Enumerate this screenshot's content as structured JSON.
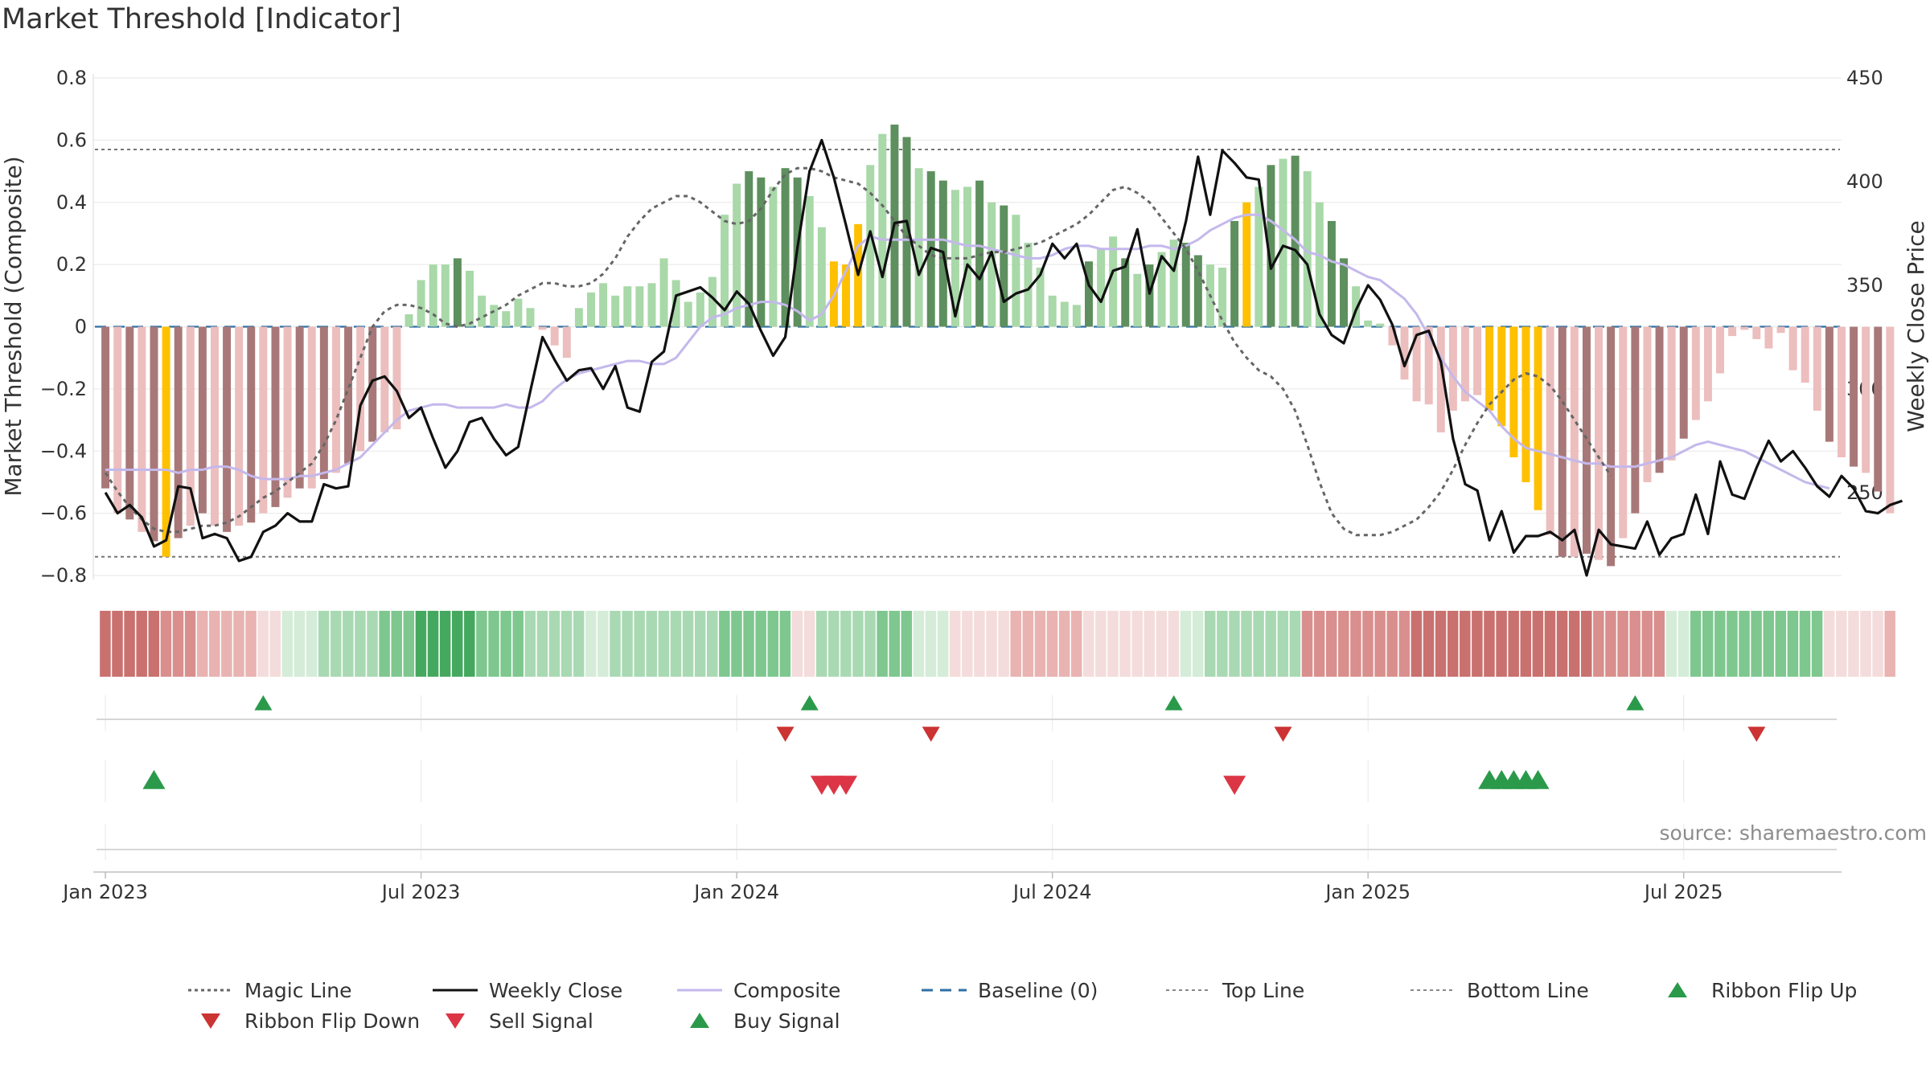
{
  "title": "Market Threshold [Indicator]",
  "source": "source: sharemaestro.com",
  "legend": [
    {
      "label": "Magic Line",
      "kind": "dotted",
      "color": "#666666"
    },
    {
      "label": "Weekly Close",
      "kind": "solid",
      "color": "#111111"
    },
    {
      "label": "Composite",
      "kind": "solid",
      "color": "#c4b8ec"
    },
    {
      "label": "Baseline (0)",
      "kind": "dashed",
      "color": "#2f6fa3"
    },
    {
      "label": "Top Line",
      "kind": "dotted",
      "color": "#888888"
    },
    {
      "label": "Bottom Line",
      "kind": "dotted",
      "color": "#888888"
    },
    {
      "label": "Ribbon Flip Up",
      "kind": "triangle-up",
      "color": "#2a9a4a"
    },
    {
      "label": "Ribbon Flip Down",
      "kind": "triangle-down",
      "color": "#cc3333"
    },
    {
      "label": "Sell Signal",
      "kind": "triangle-down",
      "color": "#dc3545"
    },
    {
      "label": "Buy Signal",
      "kind": "triangle-up",
      "color": "#2a9a4a"
    }
  ],
  "chart_data": {
    "type": "bar",
    "title": "Market Threshold [Indicator]",
    "ylabel": "Market Threshold (Composite)",
    "y2label": "Weekly Close Price",
    "ylim": [
      -0.8,
      0.8
    ],
    "yticks": [
      -0.8,
      -0.6,
      -0.4,
      -0.2,
      0,
      0.2,
      0.4,
      0.6,
      0.8
    ],
    "y2lim": [
      210,
      450
    ],
    "y2ticks": [
      250,
      300,
      350,
      400,
      450
    ],
    "xticks": [
      "Jan 2023",
      "Jul 2023",
      "Jan 2024",
      "Jul 2024",
      "Jan 2025",
      "Jul 2025"
    ],
    "xtick_weeks": [
      0,
      26,
      52,
      78,
      104,
      130
    ],
    "week_range": [
      -1,
      143
    ],
    "top_line": 0.57,
    "bottom_line": -0.74,
    "baseline": 0,
    "bar_colors": {
      "pos_strong": "#5e8f5e",
      "pos_weak": "#a9d8a9",
      "neg_strong": "#a87878",
      "neg_weak": "#ecbebe",
      "extreme": "#ffc000"
    },
    "composite_bars": [
      -0.52,
      -0.6,
      -0.62,
      -0.66,
      -0.69,
      -0.74,
      -0.68,
      -0.64,
      -0.6,
      -0.64,
      -0.66,
      -0.64,
      -0.63,
      -0.6,
      -0.58,
      -0.55,
      -0.52,
      -0.52,
      -0.49,
      -0.47,
      -0.44,
      -0.4,
      -0.37,
      -0.34,
      -0.33,
      0.04,
      0.15,
      0.2,
      0.2,
      0.22,
      0.18,
      0.1,
      0.07,
      0.05,
      0.09,
      0.06,
      -0.01,
      -0.06,
      -0.1,
      0.06,
      0.11,
      0.14,
      0.1,
      0.13,
      0.13,
      0.14,
      0.22,
      0.15,
      0.08,
      0.11,
      0.16,
      0.36,
      0.46,
      0.5,
      0.48,
      0.45,
      0.51,
      0.48,
      0.42,
      0.32,
      0.21,
      0.2,
      0.33,
      0.52,
      0.62,
      0.65,
      0.61,
      0.51,
      0.5,
      0.47,
      0.44,
      0.45,
      0.47,
      0.4,
      0.39,
      0.36,
      0.27,
      0.19,
      0.1,
      0.08,
      0.07,
      0.21,
      0.25,
      0.29,
      0.22,
      0.17,
      0.2,
      0.24,
      0.28,
      0.27,
      0.23,
      0.2,
      0.19,
      0.34,
      0.4,
      0.45,
      0.52,
      0.54,
      0.55,
      0.5,
      0.4,
      0.34,
      0.22,
      0.13,
      0.02,
      0.01,
      -0.06,
      -0.17,
      -0.24,
      -0.25,
      -0.34,
      -0.27,
      -0.24,
      -0.22,
      -0.27,
      -0.32,
      -0.42,
      -0.5,
      -0.59,
      -0.67,
      -0.74,
      -0.74,
      -0.73,
      -0.75,
      -0.77,
      -0.68,
      -0.6,
      -0.5,
      -0.47,
      -0.43,
      -0.36,
      -0.3,
      -0.24,
      -0.15,
      -0.03,
      -0.01,
      -0.04,
      -0.07,
      -0.02,
      -0.14,
      -0.18,
      -0.27,
      -0.37,
      -0.42,
      -0.45,
      -0.47,
      -0.53,
      -0.6
    ],
    "extreme_weeks": [
      5,
      60,
      61,
      62,
      94,
      114,
      115,
      116,
      117,
      118
    ],
    "weekly_close": [
      250,
      240,
      244,
      238,
      224,
      227,
      253,
      252,
      228,
      230,
      228,
      217,
      219,
      231,
      234,
      240,
      236,
      236,
      254,
      252,
      253,
      292,
      304,
      306,
      299,
      286,
      291,
      276,
      262,
      270,
      284,
      286,
      276,
      268,
      272,
      299,
      325,
      314,
      304,
      309,
      310,
      300,
      311,
      291,
      289,
      313,
      318,
      345,
      347,
      349,
      344,
      338,
      347,
      341,
      328,
      316,
      325,
      368,
      405,
      420,
      402,
      379,
      355,
      376,
      354,
      380,
      381,
      355,
      368,
      366,
      335,
      360,
      353,
      366,
      342,
      346,
      348,
      355,
      370,
      363,
      370,
      350,
      342,
      357,
      359,
      377,
      346,
      364,
      357,
      381,
      412,
      384,
      415,
      409,
      402,
      401,
      358,
      369,
      367,
      360,
      336,
      326,
      322,
      338,
      350,
      343,
      331,
      311,
      326,
      328,
      313,
      276,
      254,
      251,
      227,
      241,
      221,
      229,
      229,
      231,
      227,
      232,
      210,
      232,
      225,
      224,
      223,
      236,
      220,
      228,
      230,
      249,
      230,
      265,
      249,
      247,
      262,
      275,
      265,
      270,
      262,
      253,
      248,
      258,
      252,
      241,
      240,
      244,
      246
    ],
    "composite_line": [
      -0.46,
      -0.46,
      -0.46,
      -0.46,
      -0.46,
      -0.46,
      -0.47,
      -0.46,
      -0.46,
      -0.45,
      -0.45,
      -0.46,
      -0.48,
      -0.49,
      -0.49,
      -0.49,
      -0.48,
      -0.48,
      -0.47,
      -0.46,
      -0.44,
      -0.42,
      -0.38,
      -0.34,
      -0.3,
      -0.27,
      -0.26,
      -0.25,
      -0.25,
      -0.26,
      -0.26,
      -0.26,
      -0.26,
      -0.25,
      -0.26,
      -0.26,
      -0.24,
      -0.2,
      -0.17,
      -0.15,
      -0.14,
      -0.13,
      -0.12,
      -0.11,
      -0.11,
      -0.12,
      -0.12,
      -0.1,
      -0.05,
      0.0,
      0.03,
      0.04,
      0.06,
      0.07,
      0.08,
      0.08,
      0.07,
      0.05,
      0.02,
      0.04,
      0.1,
      0.18,
      0.26,
      0.29,
      0.28,
      0.28,
      0.28,
      0.28,
      0.28,
      0.28,
      0.27,
      0.26,
      0.26,
      0.25,
      0.24,
      0.23,
      0.22,
      0.22,
      0.23,
      0.25,
      0.26,
      0.26,
      0.25,
      0.25,
      0.25,
      0.25,
      0.26,
      0.26,
      0.25,
      0.26,
      0.28,
      0.31,
      0.33,
      0.35,
      0.36,
      0.36,
      0.34,
      0.31,
      0.28,
      0.24,
      0.23,
      0.21,
      0.2,
      0.18,
      0.16,
      0.15,
      0.12,
      0.09,
      0.04,
      -0.03,
      -0.1,
      -0.16,
      -0.21,
      -0.24,
      -0.27,
      -0.32,
      -0.36,
      -0.39,
      -0.4,
      -0.41,
      -0.42,
      -0.43,
      -0.44,
      -0.44,
      -0.45,
      -0.45,
      -0.45,
      -0.44,
      -0.43,
      -0.42,
      -0.4,
      -0.38,
      -0.37,
      -0.38,
      -0.39,
      -0.4,
      -0.42,
      -0.44,
      -0.46,
      -0.48,
      -0.5,
      -0.51,
      -0.52
    ],
    "magic_line": [
      -0.47,
      -0.53,
      -0.58,
      -0.62,
      -0.65,
      -0.66,
      -0.66,
      -0.65,
      -0.64,
      -0.64,
      -0.63,
      -0.61,
      -0.58,
      -0.55,
      -0.53,
      -0.5,
      -0.47,
      -0.44,
      -0.38,
      -0.3,
      -0.2,
      -0.1,
      0.0,
      0.05,
      0.07,
      0.07,
      0.06,
      0.04,
      0.01,
      0.0,
      0.01,
      0.03,
      0.05,
      0.07,
      0.1,
      0.12,
      0.14,
      0.14,
      0.13,
      0.13,
      0.14,
      0.17,
      0.22,
      0.29,
      0.34,
      0.38,
      0.4,
      0.42,
      0.42,
      0.4,
      0.37,
      0.34,
      0.33,
      0.34,
      0.38,
      0.44,
      0.49,
      0.51,
      0.51,
      0.5,
      0.48,
      0.47,
      0.46,
      0.43,
      0.39,
      0.34,
      0.29,
      0.26,
      0.23,
      0.22,
      0.22,
      0.22,
      0.23,
      0.24,
      0.24,
      0.25,
      0.26,
      0.27,
      0.29,
      0.31,
      0.33,
      0.36,
      0.4,
      0.44,
      0.45,
      0.43,
      0.4,
      0.35,
      0.3,
      0.25,
      0.18,
      0.1,
      0.02,
      -0.05,
      -0.1,
      -0.14,
      -0.16,
      -0.2,
      -0.27,
      -0.38,
      -0.5,
      -0.6,
      -0.65,
      -0.67,
      -0.67,
      -0.67,
      -0.66,
      -0.64,
      -0.62,
      -0.58,
      -0.53,
      -0.46,
      -0.38,
      -0.31,
      -0.25,
      -0.21,
      -0.17,
      -0.15,
      -0.16,
      -0.19,
      -0.24,
      -0.3,
      -0.36,
      -0.42,
      -0.48
    ],
    "magic_line_offset": 0,
    "ribbon": {
      "colors": [
        "#c9716f",
        "#d98f8d",
        "#e8b3b1",
        "#f3dcdb",
        "#d4ecd8",
        "#a9d9b3",
        "#7ec78f",
        "#45a85f"
      ],
      "levels": [
        0,
        0,
        0,
        0,
        0,
        1,
        1,
        1,
        2,
        2,
        2,
        2,
        2,
        3,
        3,
        4,
        4,
        4,
        5,
        5,
        5,
        5,
        5,
        6,
        6,
        6,
        7,
        7,
        7,
        7,
        7,
        6,
        6,
        6,
        6,
        5,
        5,
        5,
        5,
        5,
        4,
        4,
        5,
        5,
        5,
        5,
        5,
        5,
        5,
        5,
        5,
        6,
        6,
        6,
        6,
        6,
        6,
        3,
        3,
        5,
        5,
        5,
        5,
        5,
        6,
        6,
        6,
        4,
        4,
        4,
        3,
        3,
        3,
        3,
        3,
        2,
        2,
        2,
        2,
        2,
        2,
        3,
        3,
        3,
        3,
        3,
        3,
        3,
        3,
        4,
        4,
        5,
        5,
        5,
        5,
        5,
        5,
        5,
        5,
        1,
        1,
        1,
        1,
        1,
        1,
        1,
        1,
        1,
        0,
        0,
        0,
        0,
        0,
        0,
        0,
        0,
        0,
        0,
        0,
        0,
        0,
        0,
        0,
        1,
        1,
        1,
        1,
        1,
        1,
        4,
        4,
        6,
        6,
        6,
        6,
        6,
        6,
        6,
        6,
        6,
        6,
        6,
        3,
        3,
        3,
        3,
        3,
        2
      ]
    },
    "ribbon_flip_up": [
      13,
      58,
      88,
      126
    ],
    "ribbon_flip_down": [
      56,
      68,
      97,
      136
    ],
    "buy_signal": [
      4,
      114,
      115,
      116,
      117,
      118
    ],
    "sell_signal": [
      59,
      60,
      61,
      93
    ]
  }
}
